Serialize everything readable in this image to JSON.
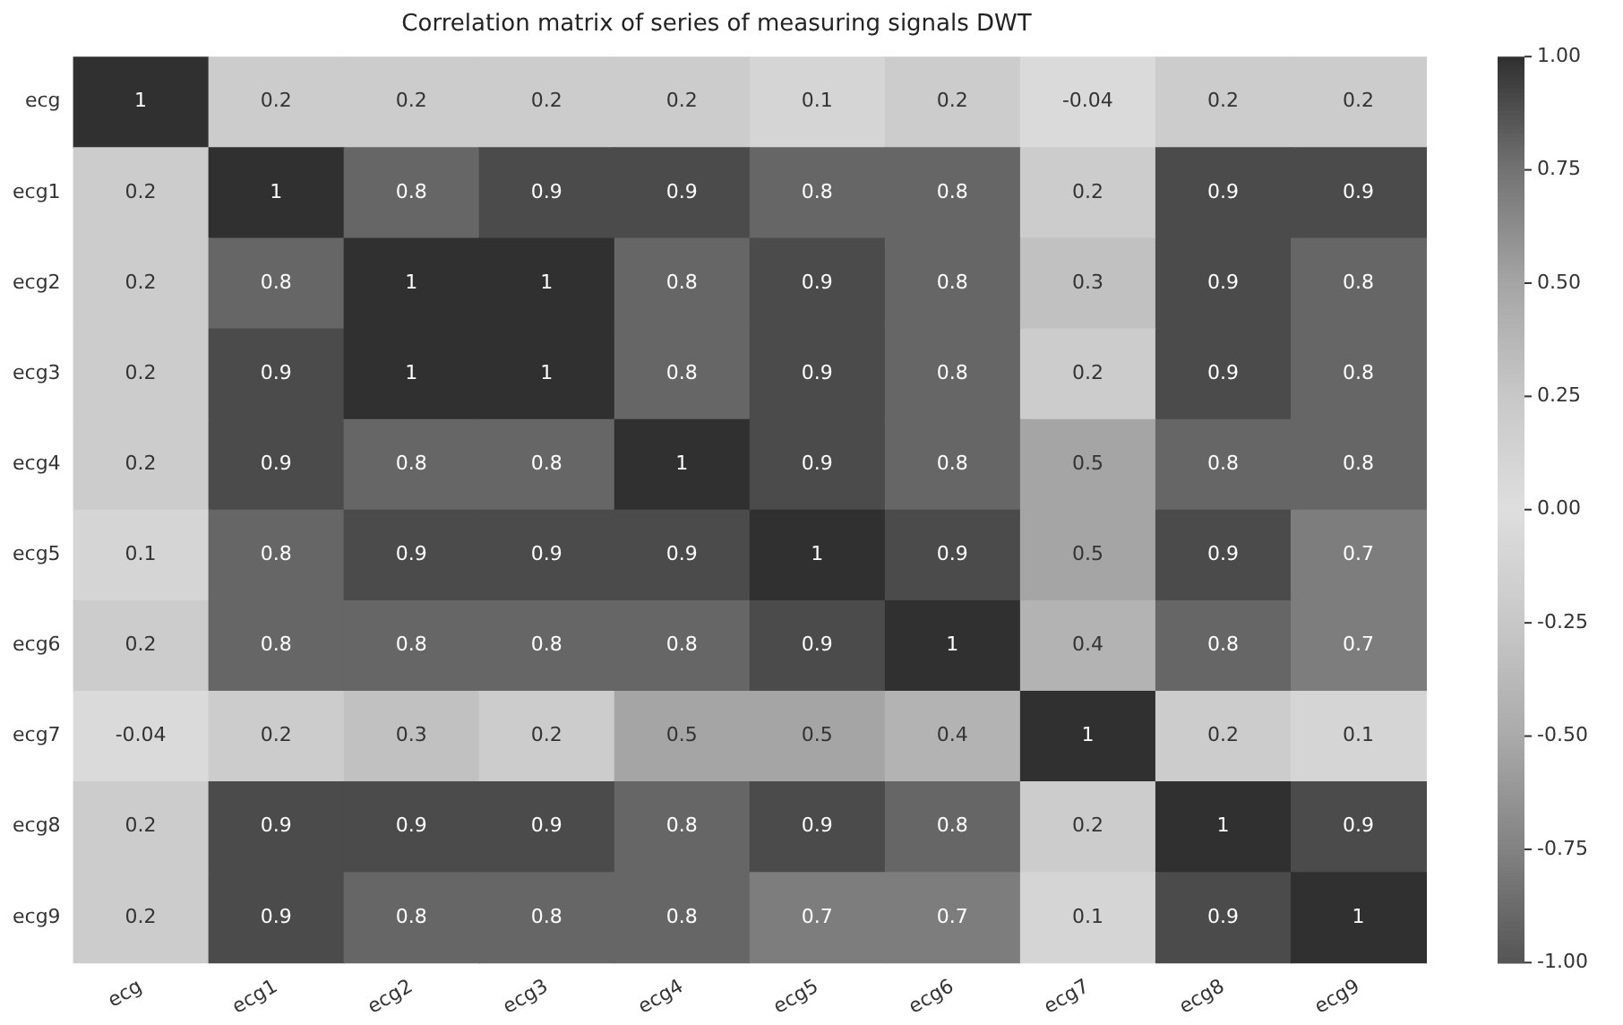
{
  "chart_data": {
    "type": "heatmap",
    "title": "Correlation matrix of series of measuring signals DWT",
    "categories": [
      "ecg",
      "ecg1",
      "ecg2",
      "ecg3",
      "ecg4",
      "ecg5",
      "ecg6",
      "ecg7",
      "ecg8",
      "ecg9"
    ],
    "y_categories": [
      "ecg",
      "ecg1",
      "ecg2",
      "ecg3",
      "ecg4",
      "ecg5",
      "ecg6",
      "ecg7",
      "ecg8",
      "ecg9"
    ],
    "cells": [
      [
        1,
        0.2,
        0.2,
        0.2,
        0.2,
        0.1,
        0.2,
        -0.04,
        0.2,
        0.2
      ],
      [
        0.2,
        1,
        0.8,
        0.9,
        0.9,
        0.8,
        0.8,
        0.2,
        0.9,
        0.9
      ],
      [
        0.2,
        0.8,
        1,
        1,
        0.8,
        0.9,
        0.8,
        0.3,
        0.9,
        0.8
      ],
      [
        0.2,
        0.9,
        1,
        1,
        0.8,
        0.9,
        0.8,
        0.2,
        0.9,
        0.8
      ],
      [
        0.2,
        0.9,
        0.8,
        0.8,
        1,
        0.9,
        0.8,
        0.5,
        0.8,
        0.8
      ],
      [
        0.1,
        0.8,
        0.9,
        0.9,
        0.9,
        1,
        0.9,
        0.5,
        0.9,
        0.7
      ],
      [
        0.2,
        0.8,
        0.8,
        0.8,
        0.8,
        0.9,
        1,
        0.4,
        0.8,
        0.7
      ],
      [
        -0.04,
        0.2,
        0.3,
        0.2,
        0.5,
        0.5,
        0.4,
        1,
        0.2,
        0.1
      ],
      [
        0.2,
        0.9,
        0.9,
        0.9,
        0.8,
        0.9,
        0.8,
        0.2,
        1,
        0.9
      ],
      [
        0.2,
        0.9,
        0.8,
        0.8,
        0.8,
        0.7,
        0.7,
        0.1,
        0.9,
        1
      ]
    ],
    "clim": [
      -1,
      1
    ],
    "cticks": [
      {
        "value": -1,
        "label": "-1.00"
      },
      {
        "value": -0.75,
        "label": "-0.75"
      },
      {
        "value": -0.5,
        "label": "-0.50"
      },
      {
        "value": -0.25,
        "label": "-0.25"
      },
      {
        "value": 0,
        "label": "0.00"
      },
      {
        "value": 0.25,
        "label": "0.25"
      },
      {
        "value": 0.5,
        "label": "0.50"
      },
      {
        "value": 0.75,
        "label": "0.75"
      },
      {
        "value": 1,
        "label": "1.00"
      }
    ],
    "data_labels": true
  }
}
